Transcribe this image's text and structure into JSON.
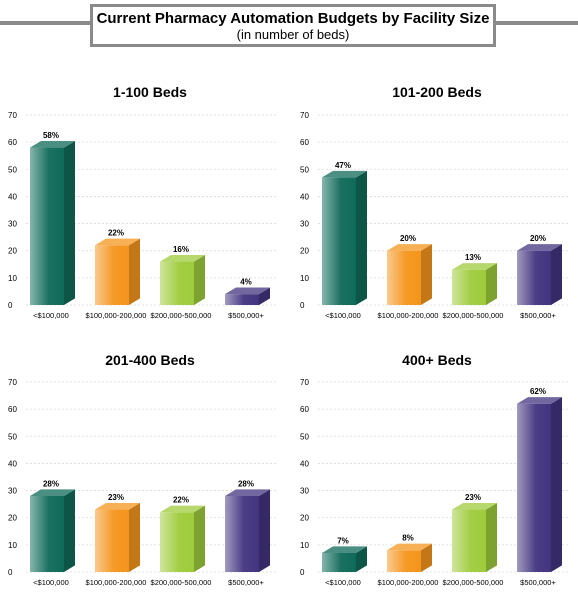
{
  "header": {
    "title": "Current Pharmacy Automation Budgets by Facility Size",
    "subtitle": "(in number of beds)"
  },
  "colors": {
    "under_100k": "#0f6a59",
    "100k_200k": "#f4951c",
    "200k_500k": "#9ecb3b",
    "500k_plus": "#43347f"
  },
  "chart_data": [
    {
      "type": "bar",
      "title": "1-100 Beds",
      "categories": [
        "<$100,000",
        "$100,000-200,000",
        "$200,000-500,000",
        "$500,000+"
      ],
      "values": [
        58,
        22,
        16,
        4
      ],
      "value_labels": [
        "58%",
        "22%",
        "16%",
        "4%"
      ],
      "ylim": [
        0,
        70
      ],
      "yticks": [
        "0",
        "10",
        "20",
        "30",
        "40",
        "50",
        "60",
        "70"
      ],
      "grid": true
    },
    {
      "type": "bar",
      "title": "101-200 Beds",
      "categories": [
        "<$100,000",
        "$100,000-200,000",
        "$200,000-500,000",
        "$500,000+"
      ],
      "values": [
        47,
        20,
        13,
        20
      ],
      "value_labels": [
        "47%",
        "20%",
        "13%",
        "20%"
      ],
      "ylim": [
        0,
        70
      ],
      "yticks": [
        "0",
        "10",
        "20",
        "30",
        "40",
        "50",
        "60",
        "70"
      ],
      "grid": true
    },
    {
      "type": "bar",
      "title": "201-400 Beds",
      "categories": [
        "<$100,000",
        "$100,000-200,000",
        "$200,000-500,000",
        "$500,000+"
      ],
      "values": [
        28,
        23,
        22,
        28
      ],
      "value_labels": [
        "28%",
        "23%",
        "22%",
        "28%"
      ],
      "ylim": [
        0,
        70
      ],
      "yticks": [
        "0",
        "10",
        "20",
        "30",
        "40",
        "50",
        "60",
        "70"
      ],
      "grid": true
    },
    {
      "type": "bar",
      "title": "400+ Beds",
      "categories": [
        "<$100,000",
        "$100,000-200,000",
        "$200,000-500,000",
        "$500,000+"
      ],
      "values": [
        7,
        8,
        23,
        62
      ],
      "value_labels": [
        "7%",
        "8%",
        "23%",
        "62%"
      ],
      "ylim": [
        0,
        70
      ],
      "yticks": [
        "0",
        "10",
        "20",
        "30",
        "40",
        "50",
        "60",
        "70"
      ],
      "grid": true
    }
  ]
}
